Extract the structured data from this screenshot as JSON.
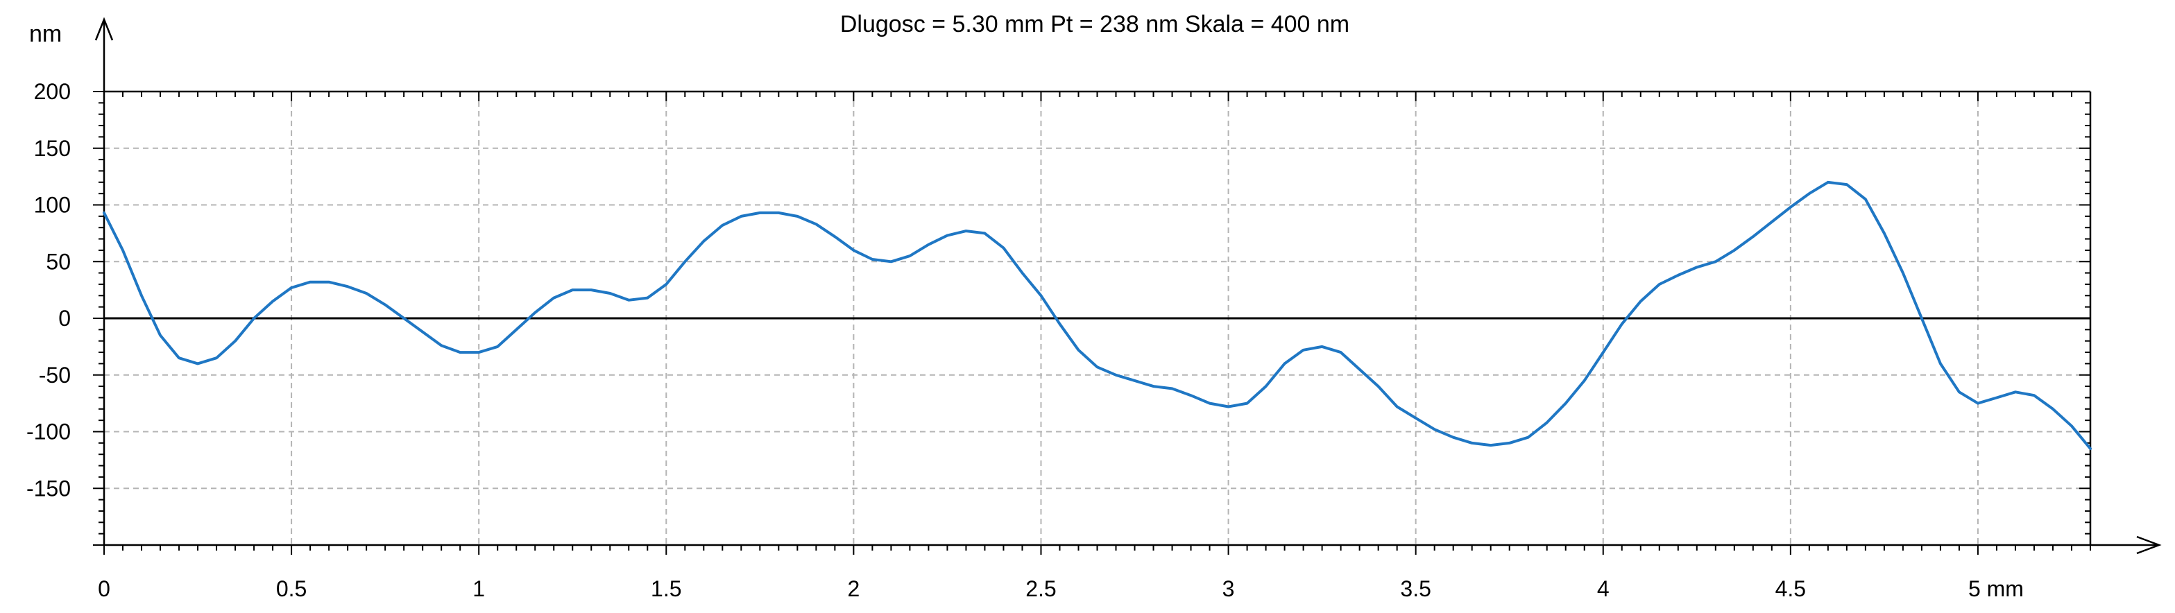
{
  "chart_data": {
    "type": "line",
    "title": "Dlugosc = 5.30 mm  Pt = 238 nm  Skala = 400 nm",
    "ylabel": "nm",
    "x_unit_label": "5 mm",
    "xlim": [
      0,
      5.3
    ],
    "ylim": [
      -200,
      200
    ],
    "grid": true,
    "x_ticks": [
      {
        "value": 0,
        "label": "0"
      },
      {
        "value": 0.5,
        "label": "0.5"
      },
      {
        "value": 1,
        "label": "1"
      },
      {
        "value": 1.5,
        "label": "1.5"
      },
      {
        "value": 2,
        "label": "2"
      },
      {
        "value": 2.5,
        "label": "2.5"
      },
      {
        "value": 3,
        "label": "3"
      },
      {
        "value": 3.5,
        "label": "3.5"
      },
      {
        "value": 4,
        "label": "4"
      },
      {
        "value": 4.5,
        "label": "4.5"
      },
      {
        "value": 5,
        "label": "5 mm"
      }
    ],
    "y_ticks": [
      {
        "value": 200,
        "label": "200"
      },
      {
        "value": 150,
        "label": "150"
      },
      {
        "value": 100,
        "label": "100"
      },
      {
        "value": 50,
        "label": "50"
      },
      {
        "value": 0,
        "label": "0"
      },
      {
        "value": -50,
        "label": "-50"
      },
      {
        "value": -100,
        "label": "-100"
      },
      {
        "value": -150,
        "label": "-150"
      }
    ],
    "series": [
      {
        "color": "#1f77c4",
        "x": [
          0,
          0.05,
          0.1,
          0.15,
          0.2,
          0.25,
          0.3,
          0.35,
          0.4,
          0.45,
          0.5,
          0.55,
          0.6,
          0.65,
          0.7,
          0.75,
          0.8,
          0.85,
          0.9,
          0.95,
          1.0,
          1.05,
          1.1,
          1.15,
          1.2,
          1.25,
          1.3,
          1.35,
          1.4,
          1.45,
          1.5,
          1.55,
          1.6,
          1.65,
          1.7,
          1.75,
          1.8,
          1.85,
          1.9,
          1.95,
          2.0,
          2.05,
          2.1,
          2.15,
          2.2,
          2.25,
          2.3,
          2.35,
          2.4,
          2.45,
          2.5,
          2.55,
          2.6,
          2.65,
          2.7,
          2.75,
          2.8,
          2.85,
          2.9,
          2.95,
          3.0,
          3.05,
          3.1,
          3.15,
          3.2,
          3.25,
          3.3,
          3.35,
          3.4,
          3.45,
          3.5,
          3.55,
          3.6,
          3.65,
          3.7,
          3.75,
          3.8,
          3.85,
          3.9,
          3.95,
          4.0,
          4.05,
          4.1,
          4.15,
          4.2,
          4.25,
          4.3,
          4.35,
          4.4,
          4.45,
          4.5,
          4.55,
          4.6,
          4.65,
          4.7,
          4.75,
          4.8,
          4.85,
          4.9,
          4.95,
          5.0,
          5.05,
          5.1,
          5.15,
          5.2,
          5.25,
          5.3
        ],
        "y": [
          93,
          60,
          20,
          -15,
          -35,
          -40,
          -35,
          -20,
          0,
          15,
          27,
          32,
          32,
          28,
          22,
          12,
          0,
          -12,
          -24,
          -30,
          -30,
          -25,
          -10,
          5,
          18,
          25,
          25,
          22,
          16,
          18,
          30,
          50,
          68,
          82,
          90,
          93,
          93,
          90,
          83,
          72,
          60,
          52,
          50,
          55,
          65,
          73,
          77,
          75,
          62,
          40,
          20,
          -5,
          -28,
          -43,
          -50,
          -55,
          -60,
          -62,
          -68,
          -75,
          -78,
          -75,
          -60,
          -40,
          -28,
          -25,
          -30,
          -45,
          -60,
          -78,
          -88,
          -98,
          -105,
          -110,
          -112,
          -110,
          -105,
          -92,
          -75,
          -55,
          -30,
          -5,
          15,
          30,
          38,
          45,
          50,
          60,
          72,
          85,
          98,
          110,
          120,
          118,
          105,
          75,
          40,
          0,
          -40,
          -65,
          -75,
          -70,
          -65,
          -68,
          -80,
          -95,
          -115
        ]
      }
    ]
  }
}
